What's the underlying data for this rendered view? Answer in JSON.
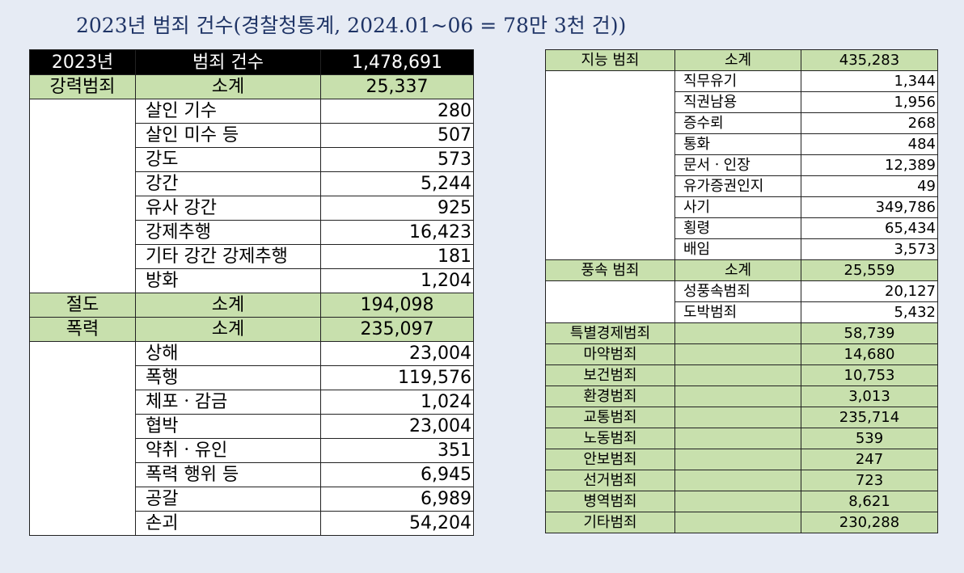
{
  "title": "2023년 범죄 건수(경찰청통계, 2024.01~06 = 78만 3천 건))",
  "left": {
    "header": [
      "2023년",
      "범죄 건수",
      "1,478,691"
    ],
    "violent": {
      "label": "강력범죄",
      "subtotal_label": "소계",
      "subtotal": "25,337",
      "items": [
        {
          "name": "살인 기수",
          "value": "280"
        },
        {
          "name": "살인 미수 등",
          "value": "507"
        },
        {
          "name": "강도",
          "value": "573"
        },
        {
          "name": "강간",
          "value": "5,244"
        },
        {
          "name": "유사 강간",
          "value": "925"
        },
        {
          "name": "강제추행",
          "value": "16,423"
        },
        {
          "name": "기타 강간 강제추행",
          "value": "181"
        },
        {
          "name": "방화",
          "value": "1,204"
        }
      ]
    },
    "theft": {
      "label": "절도",
      "subtotal_label": "소계",
      "subtotal": "194,098"
    },
    "violence": {
      "label": "폭력",
      "subtotal_label": "소계",
      "subtotal": "235,097",
      "items": [
        {
          "name": "상해",
          "value": "23,004"
        },
        {
          "name": "폭행",
          "value": "119,576"
        },
        {
          "name": "체포ㆍ감금",
          "value": "1,024"
        },
        {
          "name": "협박",
          "value": "23,004"
        },
        {
          "name": "약취ㆍ유인",
          "value": "351"
        },
        {
          "name": "폭력 행위 등",
          "value": "6,945"
        },
        {
          "name": "공갈",
          "value": "6,989"
        },
        {
          "name": "손괴",
          "value": "54,204"
        }
      ]
    }
  },
  "right": {
    "intellectual": {
      "label": "지능 범죄",
      "subtotal_label": "소계",
      "subtotal": "435,283",
      "items": [
        {
          "name": "직무유기",
          "value": "1,344"
        },
        {
          "name": "직권남용",
          "value": "1,956"
        },
        {
          "name": "증수뢰",
          "value": "268"
        },
        {
          "name": "통화",
          "value": "484"
        },
        {
          "name": "문서ㆍ인장",
          "value": "12,389"
        },
        {
          "name": "유가증권인지",
          "value": "49"
        },
        {
          "name": "사기",
          "value": "349,786"
        },
        {
          "name": "횡령",
          "value": "65,434"
        },
        {
          "name": "배임",
          "value": "3,573"
        }
      ]
    },
    "morals": {
      "label": "풍속 범죄",
      "subtotal_label": "소계",
      "subtotal": "25,559",
      "items": [
        {
          "name": "성풍속범죄",
          "value": "20,127"
        },
        {
          "name": "도박범죄",
          "value": "5,432"
        }
      ]
    },
    "others": [
      {
        "name": "특별경제범죄",
        "value": "58,739"
      },
      {
        "name": "마약범죄",
        "value": "14,680"
      },
      {
        "name": "보건범죄",
        "value": "10,753"
      },
      {
        "name": "환경범죄",
        "value": "3,013"
      },
      {
        "name": "교통범죄",
        "value": "235,714"
      },
      {
        "name": "노동범죄",
        "value": "539"
      },
      {
        "name": "안보범죄",
        "value": "247"
      },
      {
        "name": "선거범죄",
        "value": "723"
      },
      {
        "name": "병역범죄",
        "value": "8,621"
      },
      {
        "name": "기타범죄",
        "value": "230,288"
      }
    ]
  },
  "colors": {
    "green": "#c8e0ad",
    "header_bg": "#000000",
    "title": "#1f3466",
    "page_bg": "#e6ebf4"
  }
}
